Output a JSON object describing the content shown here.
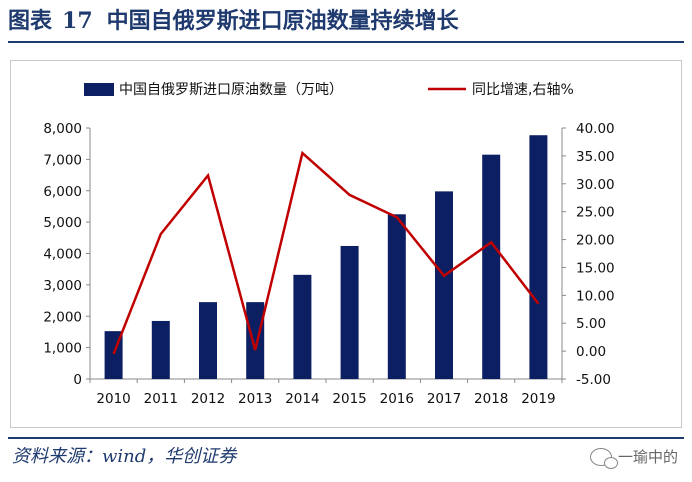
{
  "header": {
    "figure_label": "图表",
    "figure_number": "17",
    "title": "中国自俄罗斯进口原油数量持续增长"
  },
  "footer": {
    "source": "资料来源：wind，华创证券",
    "watermark": "一瑜中的"
  },
  "colors": {
    "bar": "#0d1f63",
    "line": "#c00000",
    "title": "#1f3a6e"
  },
  "chart_data": {
    "type": "bar",
    "categories": [
      "2010",
      "2011",
      "2012",
      "2013",
      "2014",
      "2015",
      "2016",
      "2017",
      "2018",
      "2019"
    ],
    "series": [
      {
        "name": "中国自俄罗斯进口原油数量（万吨）",
        "type": "bar",
        "axis": "left",
        "values": [
          1525,
          1850,
          2450,
          2450,
          3320,
          4240,
          5250,
          5980,
          7150,
          7770
        ]
      },
      {
        "name": "同比增速,右轴%",
        "type": "line",
        "axis": "right",
        "values": [
          -0.5,
          21,
          31.5,
          0.2,
          35.5,
          28,
          24,
          13.5,
          19.5,
          8.5
        ]
      }
    ],
    "y_left": {
      "min": 0,
      "max": 8000,
      "ticks": [
        0,
        1000,
        2000,
        3000,
        4000,
        5000,
        6000,
        7000,
        8000
      ],
      "tick_labels": [
        "0",
        "1,000",
        "2,000",
        "3,000",
        "4,000",
        "5,000",
        "6,000",
        "7,000",
        "8,000"
      ]
    },
    "y_right": {
      "min": -5,
      "max": 40,
      "ticks": [
        -5,
        0,
        5,
        10,
        15,
        20,
        25,
        30,
        35,
        40
      ],
      "tick_labels": [
        "-5.00",
        "0.00",
        "5.00",
        "10.00",
        "15.00",
        "20.00",
        "25.00",
        "30.00",
        "35.00",
        "40.00"
      ]
    },
    "legend": {
      "placement": "top",
      "bar_label": "中国自俄罗斯进口原油数量（万吨）",
      "line_label": "同比增速,右轴%"
    },
    "grid": false
  }
}
